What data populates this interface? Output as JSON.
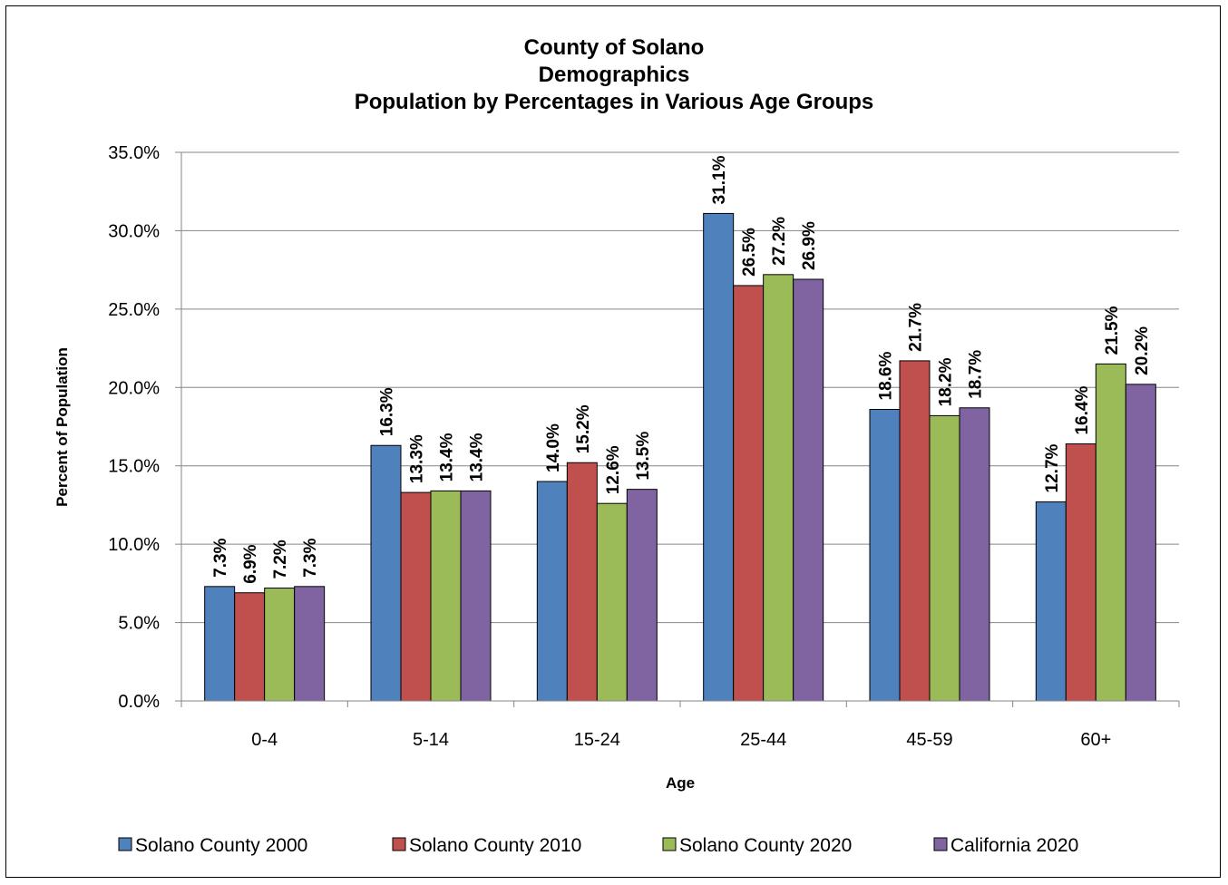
{
  "chart_data": {
    "type": "bar",
    "title": [
      "County of Solano",
      "Demographics",
      "Population by Percentages in Various Age Groups"
    ],
    "xlabel": "Age",
    "ylabel": "Percent of Population",
    "categories": [
      "0-4",
      "5-14",
      "15-24",
      "25-44",
      "45-59",
      "60+"
    ],
    "ylim": [
      0,
      35
    ],
    "yticks": [
      "0.0%",
      "5.0%",
      "10.0%",
      "15.0%",
      "20.0%",
      "25.0%",
      "30.0%",
      "35.0%"
    ],
    "grid": true,
    "legend_position": "bottom",
    "series": [
      {
        "name": "Solano County 2000",
        "color": "#4F81BD",
        "values": [
          7.3,
          16.3,
          14.0,
          31.1,
          18.6,
          12.7
        ],
        "labels": [
          "7.3%",
          "16.3%",
          "14.0%",
          "31.1%",
          "18.6%",
          "12.7%"
        ]
      },
      {
        "name": "Solano County 2010",
        "color": "#C0504D",
        "values": [
          6.9,
          13.3,
          15.2,
          26.5,
          21.7,
          16.4
        ],
        "labels": [
          "6.9%",
          "13.3%",
          "15.2%",
          "26.5%",
          "21.7%",
          "16.4%"
        ]
      },
      {
        "name": "Solano County 2020",
        "color": "#9BBB59",
        "values": [
          7.2,
          13.4,
          12.6,
          27.2,
          18.2,
          21.5
        ],
        "labels": [
          "7.2%",
          "13.4%",
          "12.6%",
          "27.2%",
          "18.2%",
          "21.5%"
        ]
      },
      {
        "name": "California 2020",
        "color": "#8064A2",
        "values": [
          7.3,
          13.4,
          13.5,
          26.9,
          18.7,
          20.2
        ],
        "labels": [
          "7.3%",
          "13.4%",
          "13.5%",
          "26.9%",
          "18.7%",
          "20.2%"
        ]
      }
    ]
  }
}
